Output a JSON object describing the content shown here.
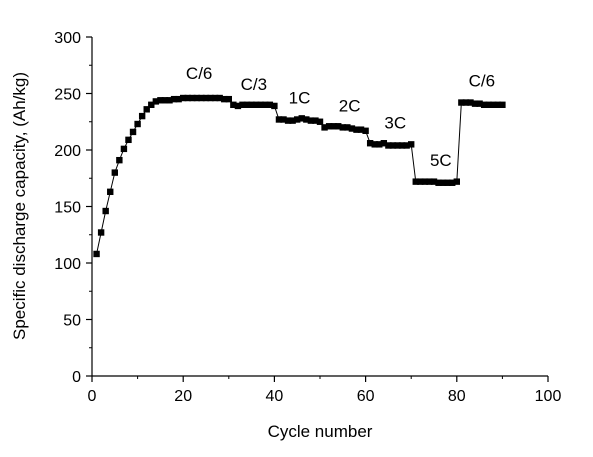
{
  "chart_data": {
    "type": "line",
    "title": "",
    "xlabel": "Cycle number",
    "ylabel": "Specific discharge capacity, (Ah/kg)",
    "xlim": [
      0,
      100
    ],
    "ylim": [
      0,
      300
    ],
    "xticks": [
      0,
      20,
      40,
      60,
      80,
      100
    ],
    "yticks": [
      0,
      50,
      100,
      150,
      200,
      250,
      300
    ],
    "grid": false,
    "marker": "square",
    "series_color": "#000000",
    "series": [
      {
        "x": [
          1,
          2,
          3,
          4,
          5,
          6,
          7,
          8,
          9,
          10,
          11,
          12,
          13,
          14,
          15,
          16,
          17,
          18,
          19,
          20,
          21,
          22,
          23,
          24,
          25,
          26,
          27,
          28,
          29,
          30,
          31,
          32,
          33,
          34,
          35,
          36,
          37,
          38,
          39,
          40,
          41,
          42,
          43,
          44,
          45,
          46,
          47,
          48,
          49,
          50,
          51,
          52,
          53,
          54,
          55,
          56,
          57,
          58,
          59,
          60,
          61,
          62,
          63,
          64,
          65,
          66,
          67,
          68,
          69,
          70,
          71,
          72,
          73,
          74,
          75,
          76,
          77,
          78,
          79,
          80,
          81,
          82,
          83,
          84,
          85,
          86,
          87,
          88,
          89,
          90
        ],
        "y": [
          108,
          127,
          146,
          163,
          180,
          191,
          201,
          209,
          216,
          223,
          230,
          236,
          240,
          243,
          244,
          244,
          244,
          245,
          245,
          246,
          246,
          246,
          246,
          246,
          246,
          246,
          246,
          246,
          245,
          245,
          240,
          239,
          240,
          240,
          240,
          240,
          240,
          240,
          240,
          239,
          227,
          227,
          226,
          226,
          227,
          228,
          227,
          226,
          226,
          225,
          220,
          221,
          221,
          221,
          220,
          220,
          219,
          218,
          218,
          217,
          206,
          205,
          205,
          206,
          204,
          204,
          204,
          204,
          204,
          205,
          172,
          172,
          172,
          172,
          172,
          171,
          171,
          171,
          171,
          172,
          242,
          242,
          242,
          241,
          241,
          240,
          240,
          240,
          240,
          240
        ]
      }
    ],
    "annotations": [
      {
        "text": "C/6",
        "x": 23.5,
        "y": 263
      },
      {
        "text": "C/3",
        "x": 35.5,
        "y": 253
      },
      {
        "text": "1C",
        "x": 45.5,
        "y": 241
      },
      {
        "text": "2C",
        "x": 56.5,
        "y": 234
      },
      {
        "text": "3C",
        "x": 66.5,
        "y": 219
      },
      {
        "text": "5C",
        "x": 76.5,
        "y": 186
      },
      {
        "text": "C/6",
        "x": 85.5,
        "y": 256
      }
    ]
  }
}
